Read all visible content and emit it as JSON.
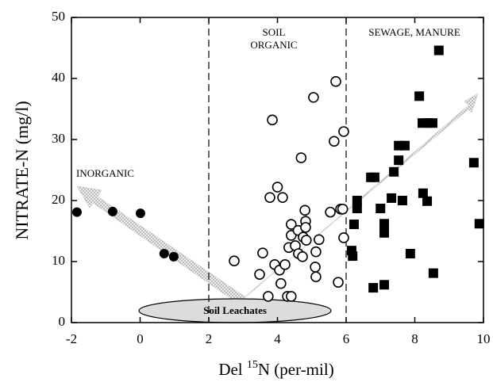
{
  "chart_data": {
    "type": "scatter",
    "xlabel_parts": [
      "Del ",
      "15",
      "N (per-mil)"
    ],
    "ylabel": "NITRATE-N (mg/l)",
    "annotations": [
      "INORGANIC",
      "SOIL",
      "ORGANIC",
      "SEWAGE, MANURE",
      "Soil Leachates"
    ],
    "xlim": [
      -2,
      10
    ],
    "ylim": [
      0,
      50
    ],
    "xticks": [
      -2,
      0,
      2,
      4,
      6,
      8,
      10
    ],
    "yticks": [
      0,
      10,
      20,
      30,
      40,
      50
    ],
    "vlines": [
      2,
      6
    ],
    "series": [
      {
        "marker": "filled-circle",
        "color": "#000000",
        "x": [
          -1.84,
          -0.8,
          0.01,
          0.7,
          0.98
        ],
        "values": [
          18.1,
          18.2,
          17.9,
          11.3,
          10.8
        ]
      },
      {
        "marker": "open-circle",
        "color": "#000000",
        "x": [
          2.74,
          3.48,
          3.57,
          3.85,
          3.78,
          4.0,
          4.15,
          3.92,
          4.06,
          4.22,
          4.1,
          3.73,
          4.29,
          4.4,
          4.4,
          4.4,
          4.33,
          4.52,
          4.61,
          4.6,
          4.69,
          4.75,
          4.82,
          4.8,
          4.84,
          4.73,
          5.05,
          5.12,
          5.1,
          5.12,
          5.21,
          5.54,
          5.65,
          5.7,
          5.77,
          5.84,
          5.93,
          5.93,
          5.9,
          4.82
        ],
        "values": [
          10.1,
          7.9,
          11.4,
          33.2,
          20.5,
          22.2,
          20.5,
          9.5,
          8.6,
          9.5,
          6.4,
          4.3,
          4.3,
          4.3,
          16.1,
          14.3,
          12.3,
          12.6,
          11.3,
          15.1,
          27.0,
          14.0,
          16.6,
          18.4,
          13.5,
          10.8,
          36.9,
          11.6,
          9.1,
          7.5,
          13.6,
          18.1,
          29.7,
          39.5,
          6.6,
          18.6,
          31.3,
          13.9,
          18.6,
          15.6
        ]
      },
      {
        "marker": "square",
        "color": "#000000",
        "x": [
          9.88,
          9.72,
          8.7,
          8.13,
          8.22,
          8.4,
          8.52,
          7.53,
          7.71,
          7.53,
          7.39,
          6.72,
          6.83,
          6.32,
          6.32,
          7.32,
          7.64,
          8.24,
          8.36,
          7.0,
          7.11,
          7.11,
          6.23,
          6.16,
          6.19,
          7.87,
          6.79,
          7.11,
          8.54
        ],
        "values": [
          16.2,
          26.2,
          44.6,
          37.1,
          32.7,
          32.7,
          32.7,
          29.0,
          29.0,
          26.6,
          24.7,
          23.8,
          23.8,
          20.0,
          18.7,
          20.4,
          20.0,
          21.2,
          19.9,
          18.7,
          16.2,
          14.7,
          16.1,
          11.8,
          10.9,
          11.3,
          5.7,
          6.2,
          8.1
        ]
      }
    ]
  }
}
